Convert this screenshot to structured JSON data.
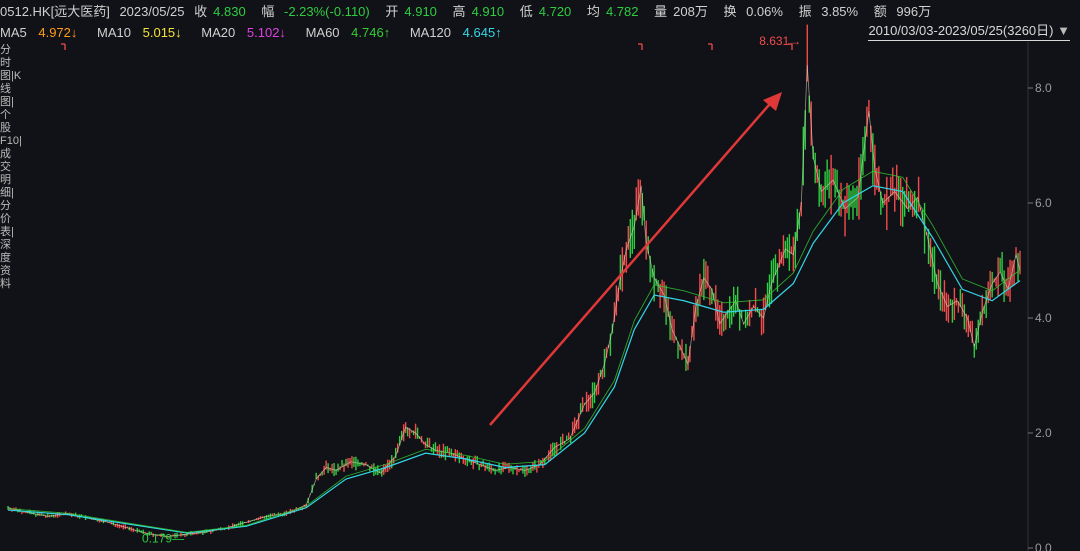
{
  "header": {
    "symbol": "0512.HK[远大医药]",
    "date": "2023/05/25",
    "close_label": "收",
    "close": "4.830",
    "change_label": "幅",
    "change": "-2.23%(-0.110)",
    "open_label": "开",
    "open": "4.910",
    "high_label": "高",
    "high": "4.910",
    "low_label": "低",
    "low": "4.720",
    "avg_label": "均",
    "avg": "4.782",
    "volume_label": "量",
    "volume": "208万",
    "turnover_label": "换",
    "turnover": "0.06%",
    "amplitude_label": "振",
    "amplitude": "3.85%",
    "amount_label": "额",
    "amount": "996万"
  },
  "ma": [
    {
      "label": "MA5",
      "value": "4.972↓",
      "color": "#ff9c1a"
    },
    {
      "label": "MA10",
      "value": "5.015↓",
      "color": "#f4e23a"
    },
    {
      "label": "MA20",
      "value": "5.102↓",
      "color": "#e040e0"
    },
    {
      "label": "MA60",
      "value": "4.746↑",
      "color": "#33cc33"
    },
    {
      "label": "MA120",
      "value": "4.645↑",
      "color": "#33d6e6"
    }
  ],
  "range_label": "2010/03/03-2023/05/25(3260日)",
  "sidebar_text": "分时图|K线图|个股F10|成交明细|分价表|深度资料",
  "colors": {
    "up": "#f24b4b",
    "down": "#2ecc40",
    "axis": "#9a9a9a",
    "bg": "#111217"
  },
  "chart_data": {
    "type": "line",
    "x_start": "2010/03/03",
    "x_end": "2023/05/25",
    "y_ticks": [
      0.0,
      2.0,
      4.0,
      6.0,
      8.0
    ],
    "ylim": [
      0.0,
      8.8
    ],
    "max_label": "8.631",
    "min_label": "0.179",
    "price_series": [
      [
        0,
        0.7
      ],
      [
        20,
        0.62
      ],
      [
        40,
        0.55
      ],
      [
        60,
        0.6
      ],
      [
        80,
        0.52
      ],
      [
        100,
        0.45
      ],
      [
        120,
        0.35
      ],
      [
        140,
        0.25
      ],
      [
        160,
        0.2
      ],
      [
        180,
        0.24
      ],
      [
        200,
        0.28
      ],
      [
        220,
        0.35
      ],
      [
        240,
        0.45
      ],
      [
        260,
        0.55
      ],
      [
        280,
        0.6
      ],
      [
        300,
        0.75
      ],
      [
        310,
        1.2
      ],
      [
        320,
        1.4
      ],
      [
        330,
        1.35
      ],
      [
        345,
        1.5
      ],
      [
        360,
        1.45
      ],
      [
        375,
        1.3
      ],
      [
        390,
        1.6
      ],
      [
        400,
        2.1
      ],
      [
        410,
        2.0
      ],
      [
        420,
        1.8
      ],
      [
        430,
        1.7
      ],
      [
        445,
        1.65
      ],
      [
        460,
        1.55
      ],
      [
        475,
        1.45
      ],
      [
        490,
        1.35
      ],
      [
        505,
        1.4
      ],
      [
        520,
        1.35
      ],
      [
        535,
        1.45
      ],
      [
        550,
        1.75
      ],
      [
        565,
        1.9
      ],
      [
        580,
        2.5
      ],
      [
        590,
        2.7
      ],
      [
        600,
        3.2
      ],
      [
        608,
        3.8
      ],
      [
        615,
        4.6
      ],
      [
        622,
        5.2
      ],
      [
        630,
        5.6
      ],
      [
        637,
        6.3
      ],
      [
        642,
        5.3
      ],
      [
        650,
        4.7
      ],
      [
        660,
        4.4
      ],
      [
        668,
        3.8
      ],
      [
        676,
        3.5
      ],
      [
        684,
        3.2
      ],
      [
        692,
        4.2
      ],
      [
        700,
        4.7
      ],
      [
        708,
        4.5
      ],
      [
        716,
        3.9
      ],
      [
        724,
        4.1
      ],
      [
        732,
        4.3
      ],
      [
        740,
        3.9
      ],
      [
        750,
        4.2
      ],
      [
        760,
        4.0
      ],
      [
        768,
        4.6
      ],
      [
        775,
        4.9
      ],
      [
        782,
        5.2
      ],
      [
        790,
        5.1
      ],
      [
        798,
        6.0
      ],
      [
        804,
        8.4
      ],
      [
        810,
        6.8
      ],
      [
        818,
        6.2
      ],
      [
        830,
        6.4
      ],
      [
        842,
        5.9
      ],
      [
        855,
        6.1
      ],
      [
        866,
        7.6
      ],
      [
        872,
        6.6
      ],
      [
        880,
        6.0
      ],
      [
        892,
        6.2
      ],
      [
        905,
        5.9
      ],
      [
        915,
        6.1
      ],
      [
        925,
        5.4
      ],
      [
        935,
        4.6
      ],
      [
        945,
        4.2
      ],
      [
        955,
        4.3
      ],
      [
        965,
        4.0
      ],
      [
        972,
        3.5
      ],
      [
        980,
        4.1
      ],
      [
        990,
        4.6
      ],
      [
        998,
        4.8
      ],
      [
        1006,
        4.5
      ],
      [
        1014,
        5.1
      ],
      [
        1018,
        4.83
      ]
    ],
    "ma_series": [
      [
        0,
        0.66
      ],
      [
        60,
        0.58
      ],
      [
        120,
        0.42
      ],
      [
        180,
        0.26
      ],
      [
        240,
        0.38
      ],
      [
        300,
        0.7
      ],
      [
        340,
        1.2
      ],
      [
        380,
        1.4
      ],
      [
        420,
        1.65
      ],
      [
        460,
        1.55
      ],
      [
        500,
        1.4
      ],
      [
        540,
        1.45
      ],
      [
        580,
        2.0
      ],
      [
        610,
        2.8
      ],
      [
        630,
        3.8
      ],
      [
        650,
        4.4
      ],
      [
        680,
        4.3
      ],
      [
        720,
        4.1
      ],
      [
        760,
        4.15
      ],
      [
        790,
        4.6
      ],
      [
        810,
        5.3
      ],
      [
        840,
        6.0
      ],
      [
        870,
        6.3
      ],
      [
        900,
        6.2
      ],
      [
        930,
        5.4
      ],
      [
        960,
        4.5
      ],
      [
        990,
        4.3
      ],
      [
        1018,
        4.65
      ]
    ]
  }
}
